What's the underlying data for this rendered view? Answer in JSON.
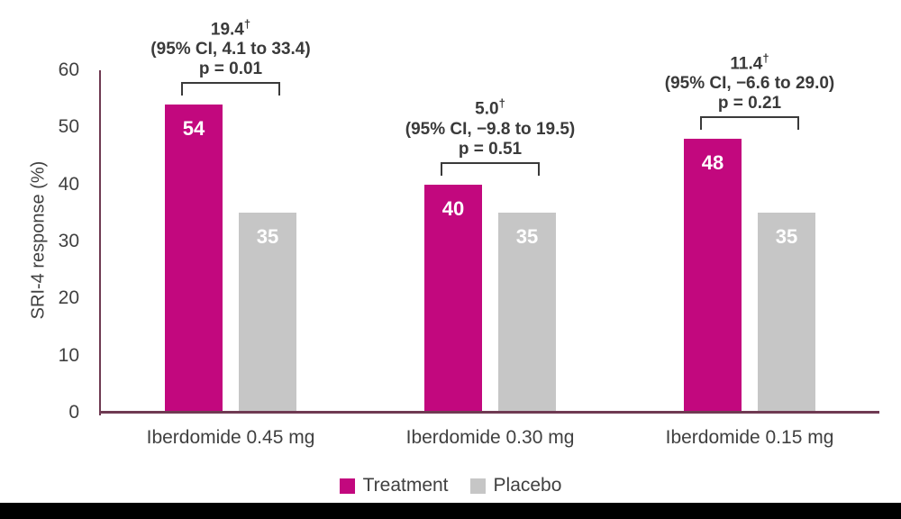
{
  "chart_data": {
    "type": "bar",
    "title": "",
    "ylabel": "SRI-4 response (%)",
    "xlabel": "",
    "ylim": [
      0,
      60
    ],
    "yticks": [
      0,
      10,
      20,
      30,
      40,
      50,
      60
    ],
    "categories": [
      "Iberdomide 0.45 mg",
      "Iberdomide 0.30 mg",
      "Iberdomide 0.15 mg"
    ],
    "series": [
      {
        "name": "Treatment",
        "color": "#c2087e",
        "values": [
          54,
          40,
          48
        ]
      },
      {
        "name": "Placebo",
        "color": "#c6c6c6",
        "values": [
          35,
          35,
          35
        ]
      }
    ],
    "bar_value_labels": [
      [
        54,
        40,
        48
      ],
      [
        35,
        35,
        35
      ]
    ],
    "annotations": [
      {
        "difference": "19.4",
        "dagger": "†",
        "ci": "(95% CI, 4.1 to 33.4)",
        "p_value": "p = 0.01"
      },
      {
        "difference": "5.0",
        "dagger": "†",
        "ci": "(95% CI, −9.8 to 19.5)",
        "p_value": "p = 0.51"
      },
      {
        "difference": "11.4",
        "dagger": "†",
        "ci": "(95% CI, −6.6 to 29.0)",
        "p_value": "p = 0.21"
      }
    ],
    "legend": [
      {
        "label": "Treatment",
        "color": "#c2087e"
      },
      {
        "label": "Placebo",
        "color": "#c6c6c6"
      }
    ],
    "legend_position": "bottom",
    "grid": false
  },
  "colors": {
    "axis_line": "#6f3a52",
    "annotation_text": "#3a3a3a",
    "axis_text": "#404040",
    "bar_value_text": "#ffffff",
    "bottom_band": "#000000",
    "background": "#ffffff"
  }
}
